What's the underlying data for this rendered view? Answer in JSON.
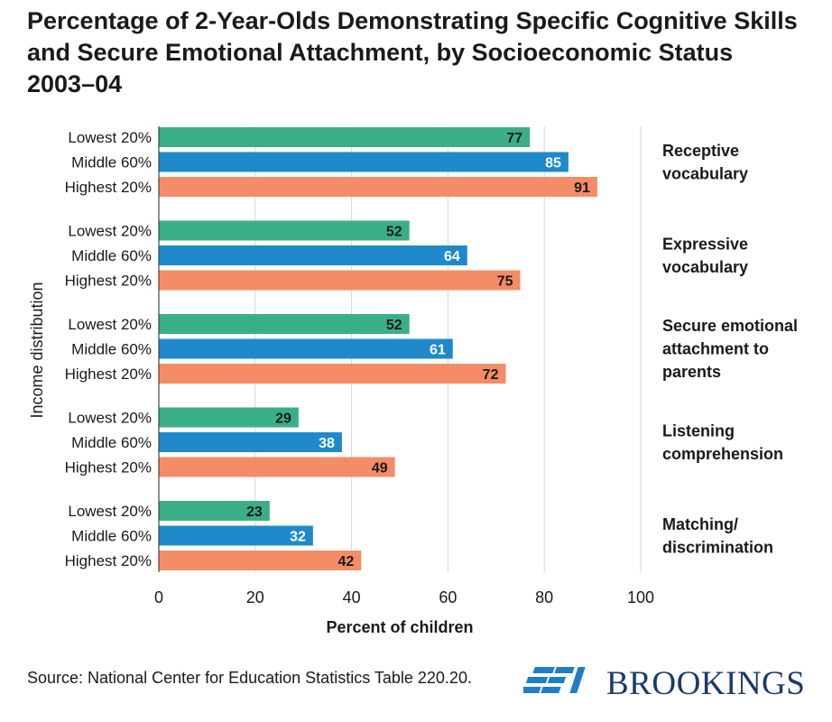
{
  "title": "Percentage of 2-Year-Olds Demonstrating Specific Cognitive Skills and Secure Emotional Attachment, by Socioeconomic Status 2003–04",
  "source": "Source: National Center for Education Statistics Table 220.20.",
  "logo": {
    "icon": "aei-logo-icon",
    "mark_text": "AEI",
    "text": "BROOKINGS",
    "color": "#1b3a6b"
  },
  "chart_data": {
    "type": "bar",
    "orientation": "horizontal",
    "xlabel": "Percent of children",
    "ylabel": "Income distribution",
    "xlim": [
      0,
      100
    ],
    "xticks": [
      0,
      20,
      40,
      60,
      80,
      100
    ],
    "grid": "vertical",
    "group_labels_position": "right",
    "series": [
      {
        "name": "Lowest 20%",
        "color": "#3aaf85",
        "label_color": "#1a1a1a"
      },
      {
        "name": "Middle 60%",
        "color": "#1f8acb",
        "label_color": "#ffffff"
      },
      {
        "name": "Highest 20%",
        "color": "#f48c68",
        "label_color": "#1a1a1a"
      }
    ],
    "groups": [
      {
        "label": [
          "Receptive",
          "vocabulary"
        ],
        "values": [
          77,
          85,
          91
        ]
      },
      {
        "label": [
          "Expressive",
          "vocabulary"
        ],
        "values": [
          52,
          64,
          75
        ]
      },
      {
        "label": [
          "Secure emotional",
          "attachment to",
          "parents"
        ],
        "values": [
          52,
          61,
          72
        ]
      },
      {
        "label": [
          "Listening",
          "comprehension"
        ],
        "values": [
          29,
          38,
          49
        ]
      },
      {
        "label": [
          "Matching/",
          "discrimination"
        ],
        "values": [
          23,
          32,
          42
        ]
      }
    ]
  }
}
